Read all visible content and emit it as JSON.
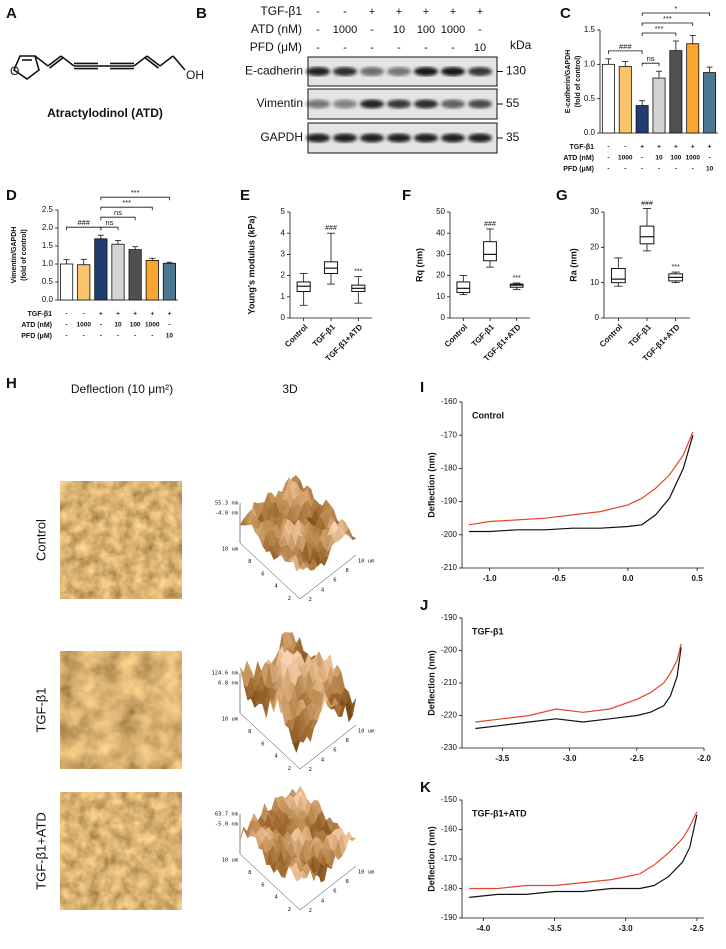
{
  "panel_a": {
    "letter": "A",
    "caption": "Atractylodinol (ATD)",
    "atoms": [
      "O",
      "OH"
    ]
  },
  "panel_b": {
    "letter": "B",
    "conditions": [
      {
        "name": "TGF-β1",
        "values": [
          "-",
          "-",
          "+",
          "+",
          "+",
          "+",
          "+"
        ]
      },
      {
        "name": "ATD (nM)",
        "values": [
          "-",
          "1000",
          "-",
          "10",
          "100",
          "1000",
          "-"
        ]
      },
      {
        "name": "PFD (μM)",
        "values": [
          "-",
          "-",
          "-",
          "-",
          "-",
          "-",
          "10"
        ]
      }
    ],
    "unit": "kDa",
    "bands": [
      {
        "name": "E-cadherin",
        "mw": 130
      },
      {
        "name": "Vimentin",
        "mw": 55
      },
      {
        "name": "GAPDH",
        "mw": 35
      }
    ]
  },
  "panel_h": {
    "letter": "H",
    "columns": [
      "Deflection (10 μm²)",
      "3D"
    ],
    "rows": [
      {
        "name": "Control",
        "z_labels": [
          "55.3 nm",
          "-4.0 nm"
        ]
      },
      {
        "name": "TGF-β1",
        "z_labels": [
          "124.6 nm",
          "6.8 nm"
        ]
      },
      {
        "name": "TGF-β1+ATD",
        "z_labels": [
          "63.7 nm",
          "-5.0 nm"
        ]
      }
    ],
    "axis_labels": [
      "10 um",
      "8",
      "6",
      "4",
      "2"
    ]
  },
  "chart_data": [
    {
      "type": "bar",
      "letter": "C",
      "ylabel": [
        "E-cadherin/GAPDH",
        "(fold of control)"
      ],
      "values": [
        1.0,
        0.97,
        0.4,
        0.8,
        1.2,
        1.3,
        0.88
      ],
      "errors": [
        0.08,
        0.07,
        0.07,
        0.1,
        0.14,
        0.12,
        0.08
      ],
      "colors": [
        "#ffffff",
        "#fbc46a",
        "#1f3d6e",
        "#d4d4d4",
        "#505050",
        "#f9a530",
        "#4d7790"
      ],
      "ylim": [
        0,
        1.5
      ],
      "yticks": [
        {
          "value": 0,
          "label": "0.0"
        },
        {
          "value": 0.5,
          "label": "0.5"
        },
        {
          "value": 1,
          "label": "1.0"
        },
        {
          "value": 1.5,
          "label": "1.5"
        }
      ],
      "treatments": [
        {
          "name": "TGF-β1",
          "values": [
            "-",
            "-",
            "+",
            "+",
            "+",
            "+",
            "+"
          ]
        },
        {
          "name": "ATD (nM)",
          "values": [
            "-",
            "1000",
            "-",
            "10",
            "100",
            "1000",
            "-"
          ]
        },
        {
          "name": "PFD (μM)",
          "values": [
            "-",
            "-",
            "-",
            "-",
            "-",
            "-",
            "10"
          ]
        }
      ],
      "comparisons": [
        {
          "pair": [
            0,
            2
          ],
          "label": "###"
        },
        {
          "pair": [
            2,
            3
          ],
          "label": "ns"
        },
        {
          "pair": [
            2,
            4
          ],
          "label": "***"
        },
        {
          "pair": [
            2,
            5
          ],
          "label": "***"
        },
        {
          "pair": [
            2,
            6
          ],
          "label": "*"
        }
      ]
    },
    {
      "type": "bar",
      "letter": "D",
      "ylabel": [
        "Vimentin/GAPDH",
        "(fold of control)"
      ],
      "values": [
        1.0,
        0.98,
        1.7,
        1.55,
        1.4,
        1.1,
        1.02
      ],
      "errors": [
        0.12,
        0.15,
        0.1,
        0.1,
        0.08,
        0.06,
        0.03
      ],
      "colors": [
        "#ffffff",
        "#fbc46a",
        "#1f3d6e",
        "#d4d4d4",
        "#505050",
        "#f9a530",
        "#4d7790"
      ],
      "ylim": [
        0,
        2.5
      ],
      "yticks": [
        {
          "value": 0,
          "label": "0.0"
        },
        {
          "value": 0.5,
          "label": "0.5"
        },
        {
          "value": 1,
          "label": "1.0"
        },
        {
          "value": 1.5,
          "label": "1.5"
        },
        {
          "value": 2,
          "label": "2.0"
        },
        {
          "value": 2.5,
          "label": "2.5"
        }
      ],
      "treatments": [
        {
          "name": "TGF-β1",
          "values": [
            "-",
            "-",
            "+",
            "+",
            "+",
            "+",
            "+"
          ]
        },
        {
          "name": "ATD (nM)",
          "values": [
            "-",
            "1000",
            "-",
            "10",
            "100",
            "1000",
            "-"
          ]
        },
        {
          "name": "PFD (μM)",
          "values": [
            "-",
            "-",
            "-",
            "-",
            "-",
            "-",
            "10"
          ]
        }
      ],
      "comparisons": [
        {
          "pair": [
            0,
            2
          ],
          "label": "###"
        },
        {
          "pair": [
            2,
            3
          ],
          "label": "ns"
        },
        {
          "pair": [
            2,
            4
          ],
          "label": "ns"
        },
        {
          "pair": [
            2,
            5
          ],
          "label": "***"
        },
        {
          "pair": [
            2,
            6
          ],
          "label": "***"
        }
      ]
    },
    {
      "type": "box",
      "letter": "E",
      "ylabel": "Young's modulus (kPa)",
      "categories": [
        "Control",
        "TGF-β1",
        "TGF-β1+ATD"
      ],
      "boxes": [
        {
          "min": 0.6,
          "q1": 1.25,
          "median": 1.5,
          "q3": 1.7,
          "max": 2.1
        },
        {
          "min": 1.6,
          "q1": 2.1,
          "median": 2.35,
          "q3": 2.65,
          "max": 4.0
        },
        {
          "min": 0.7,
          "q1": 1.25,
          "median": 1.4,
          "q3": 1.55,
          "max": 1.95
        }
      ],
      "value_annotations": [
        null,
        "###",
        "***"
      ],
      "ylim": [
        0,
        5
      ],
      "yticks": [
        0,
        1,
        2,
        3,
        4,
        5
      ]
    },
    {
      "type": "box",
      "letter": "F",
      "ylabel": "Rq (nm)",
      "categories": [
        "Control",
        "TGF-β1",
        "TGF-β1+ATD"
      ],
      "boxes": [
        {
          "min": 11,
          "q1": 12,
          "median": 14,
          "q3": 17,
          "max": 20
        },
        {
          "min": 24,
          "q1": 27,
          "median": 30,
          "q3": 36,
          "max": 42
        },
        {
          "min": 13.5,
          "q1": 14.5,
          "median": 15.5,
          "q3": 16,
          "max": 16.5
        }
      ],
      "value_annotations": [
        null,
        "###",
        "***"
      ],
      "ylim": [
        0,
        50
      ],
      "yticks": [
        0,
        10,
        20,
        30,
        40,
        50
      ]
    },
    {
      "type": "box",
      "letter": "G",
      "ylabel": "Ra (nm)",
      "categories": [
        "Control",
        "TGF-β1",
        "TGF-β1+ATD"
      ],
      "boxes": [
        {
          "min": 9,
          "q1": 10,
          "median": 11,
          "q3": 14,
          "max": 17
        },
        {
          "min": 19,
          "q1": 21,
          "median": 23,
          "q3": 26,
          "max": 31
        },
        {
          "min": 10,
          "q1": 10.5,
          "median": 11.5,
          "q3": 12.5,
          "max": 13
        }
      ],
      "value_annotations": [
        null,
        "###",
        "***"
      ],
      "ylim": [
        0,
        30
      ],
      "yticks": [
        0,
        10,
        20,
        30
      ]
    },
    {
      "type": "line",
      "letter": "I",
      "title": "Control",
      "ylabel": "Deflection (nm)",
      "x": [
        -1.15,
        -1.0,
        -0.8,
        -0.6,
        -0.4,
        -0.2,
        0.0,
        0.1,
        0.2,
        0.3,
        0.4,
        0.47
      ],
      "series": [
        {
          "color": "#e8442a",
          "values": [
            -197,
            -196,
            -195.5,
            -195,
            -194,
            -193,
            -191,
            -189,
            -186,
            -182,
            -176,
            -169
          ]
        },
        {
          "color": "#111111",
          "values": [
            -199,
            -199,
            -198.5,
            -198.5,
            -198,
            -198,
            -197.5,
            -197,
            -194,
            -189,
            -180,
            -170
          ]
        }
      ],
      "xlim": [
        -1.2,
        0.55
      ],
      "xticks": [
        {
          "value": -1,
          "label": "-1.0"
        },
        -0.5,
        {
          "value": 0,
          "label": "0.0"
        },
        0.5
      ],
      "ylim": [
        -210,
        -160
      ],
      "yticks": [
        -210,
        -200,
        -190,
        -180,
        -170,
        -160
      ]
    },
    {
      "type": "line",
      "letter": "J",
      "title": "TGF-β1",
      "ylabel": "Deflection (nm)",
      "x": [
        -3.7,
        -3.5,
        -3.3,
        -3.1,
        -2.9,
        -2.7,
        -2.5,
        -2.4,
        -2.3,
        -2.25,
        -2.2,
        -2.17
      ],
      "series": [
        {
          "color": "#e8442a",
          "values": [
            -222,
            -221,
            -220,
            -218,
            -219,
            -218,
            -215,
            -213,
            -210,
            -207,
            -203,
            -198
          ]
        },
        {
          "color": "#111111",
          "values": [
            -224,
            -223,
            -222,
            -221,
            -222,
            -221,
            -220,
            -219,
            -217,
            -214,
            -208,
            -199
          ]
        }
      ],
      "xlim": [
        -3.8,
        -2.0
      ],
      "xticks": [
        -3.5,
        {
          "value": -3,
          "label": "-3.0"
        },
        -2.5,
        {
          "value": -2,
          "label": "-2.0"
        }
      ],
      "ylim": [
        -230,
        -190
      ],
      "yticks": [
        -230,
        -220,
        -210,
        -200,
        -190
      ]
    },
    {
      "type": "line",
      "letter": "K",
      "title": "TGF-β1+ATD",
      "ylabel": "Deflection (nm)",
      "x": [
        -4.1,
        -3.9,
        -3.7,
        -3.5,
        -3.3,
        -3.1,
        -2.9,
        -2.8,
        -2.7,
        -2.6,
        -2.55,
        -2.5
      ],
      "series": [
        {
          "color": "#e8442a",
          "values": [
            -180,
            -180,
            -179,
            -179,
            -178,
            -177,
            -175,
            -172,
            -168,
            -163,
            -159,
            -154
          ]
        },
        {
          "color": "#111111",
          "values": [
            -183,
            -182,
            -182,
            -181,
            -181,
            -180,
            -180,
            -179,
            -176,
            -171,
            -166,
            -155
          ]
        }
      ],
      "xlim": [
        -4.15,
        -2.45
      ],
      "xticks": [
        {
          "value": -4,
          "label": "-4.0"
        },
        -3.5,
        {
          "value": -3,
          "label": "-3.0"
        },
        -2.5
      ],
      "ylim": [
        -190,
        -150
      ],
      "yticks": [
        -190,
        -180,
        -170,
        -160,
        -150
      ]
    }
  ]
}
